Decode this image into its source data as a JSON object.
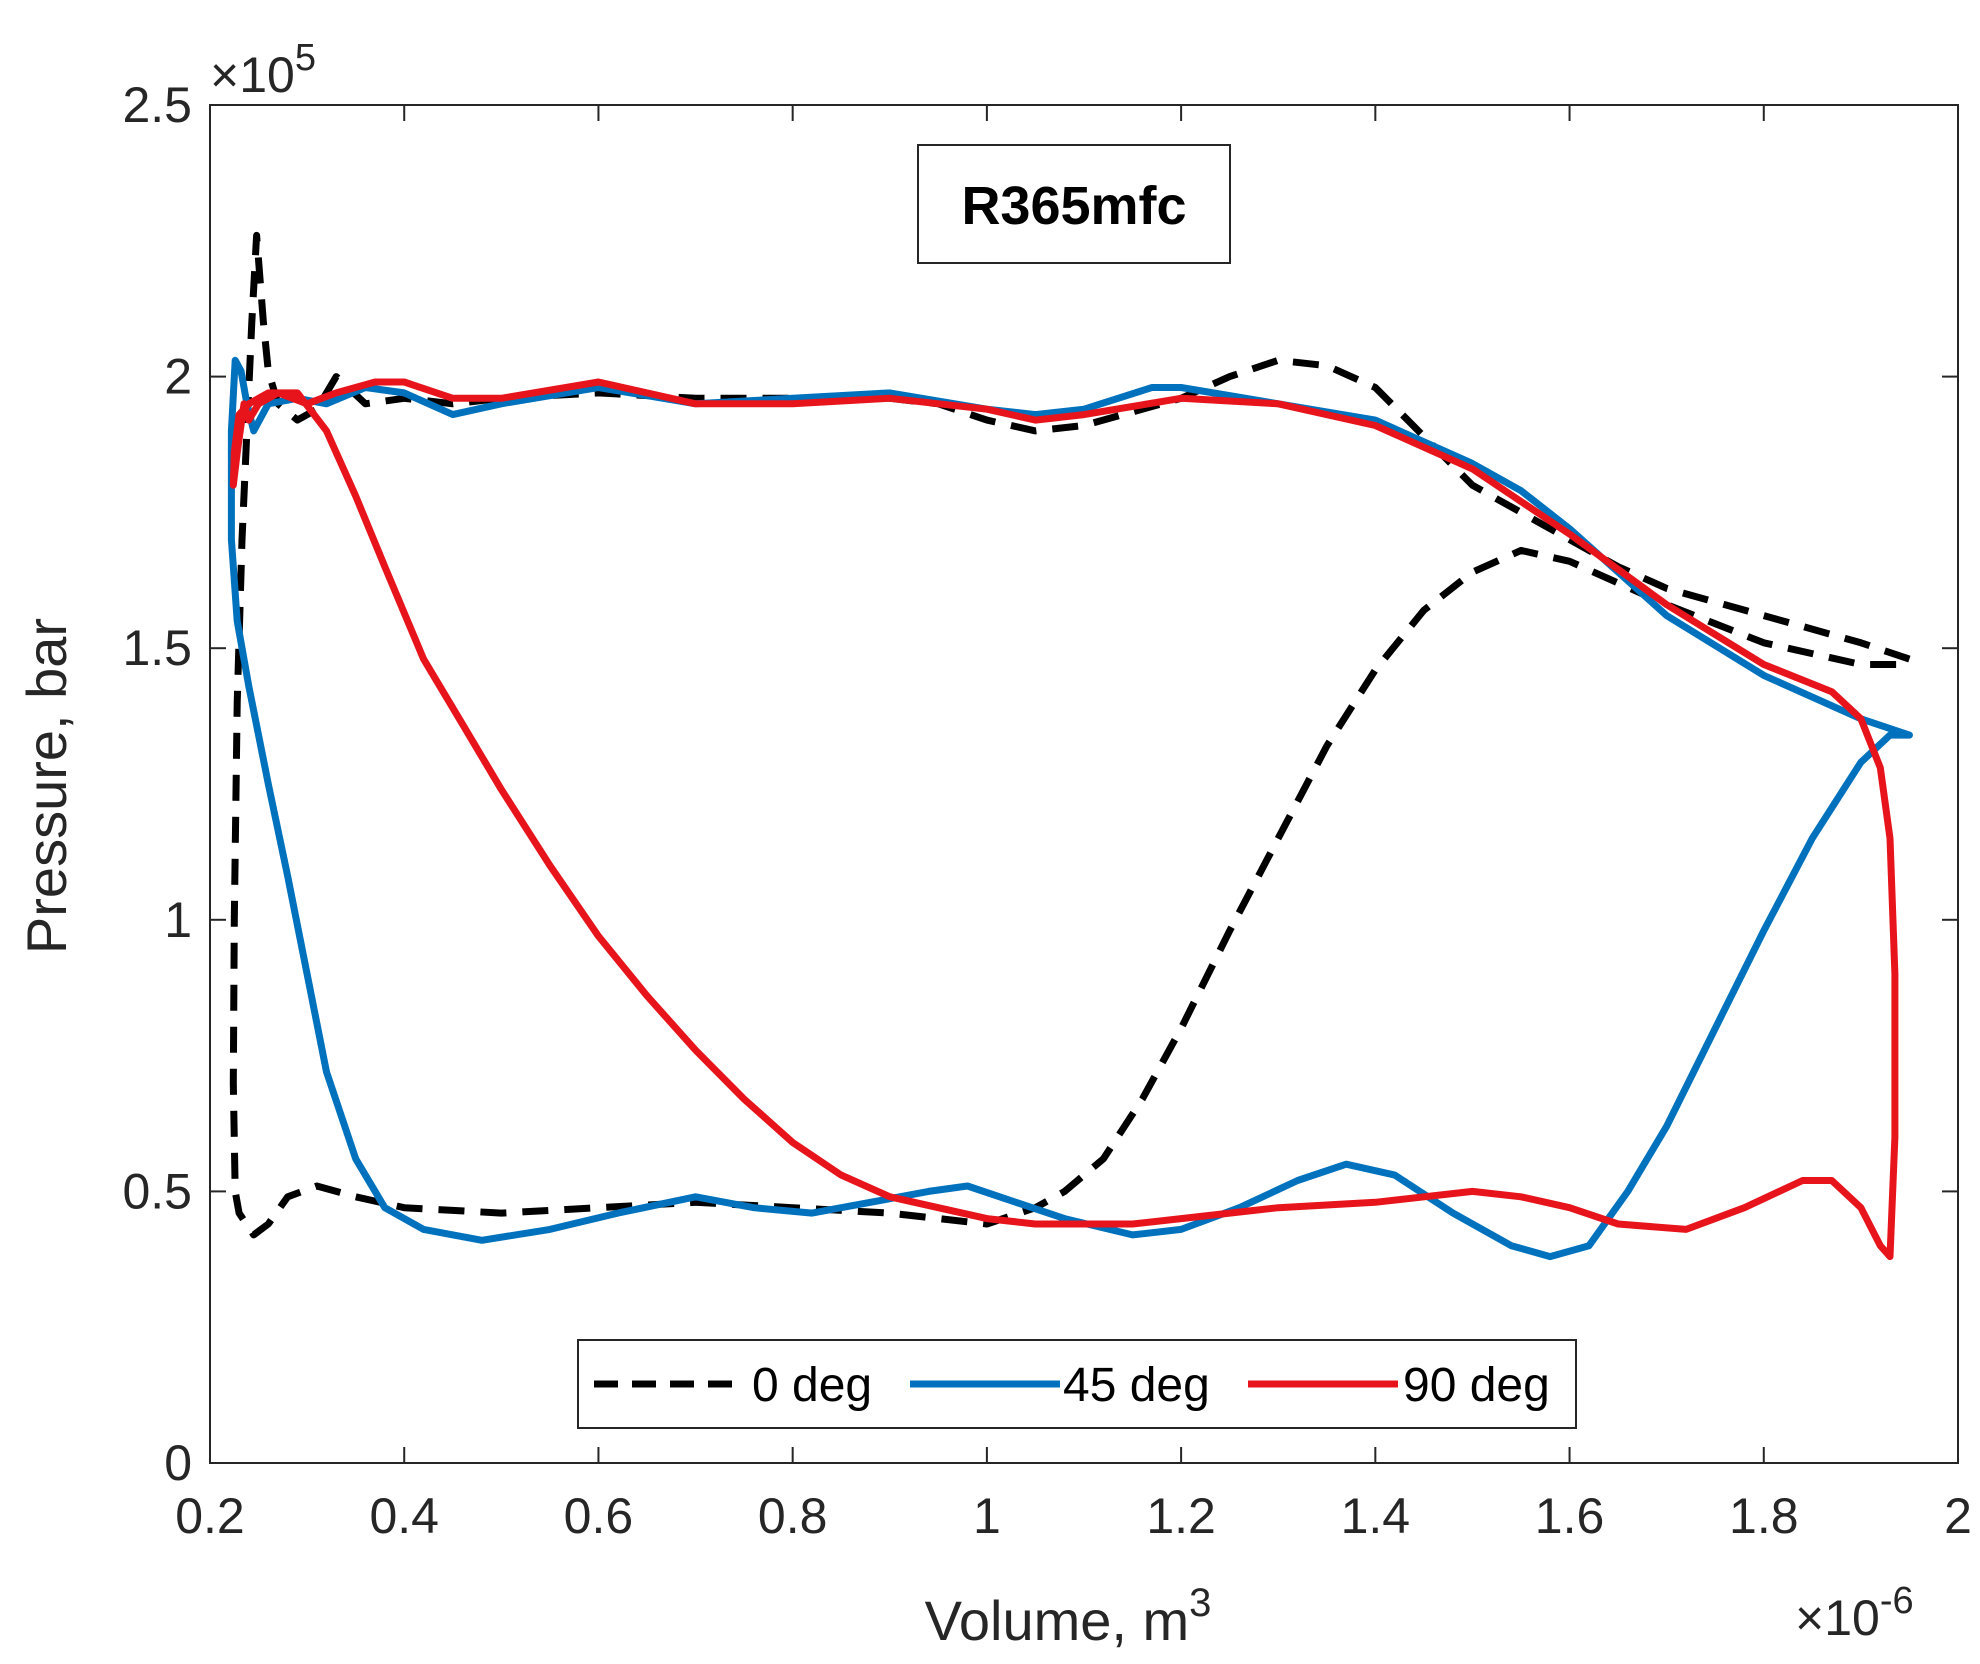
{
  "chart_data": {
    "type": "line",
    "title": "R365mfc",
    "xlabel": "Volume, m",
    "xlabel_superscript": "3",
    "ylabel": "Pressure, bar",
    "x_multiplier": "×10",
    "x_multiplier_exp": "-6",
    "y_multiplier": "×10",
    "y_multiplier_exp": "5",
    "xlim": [
      0.2,
      2.0
    ],
    "ylim": [
      0,
      2.5
    ],
    "xticks": [
      0.2,
      0.4,
      0.6,
      0.8,
      1.0,
      1.2,
      1.4,
      1.6,
      1.8,
      2.0
    ],
    "xtick_labels": [
      "0.2",
      "0.4",
      "0.6",
      "0.8",
      "1",
      "1.2",
      "1.4",
      "1.6",
      "1.8",
      "2"
    ],
    "yticks": [
      0,
      0.5,
      1.0,
      1.5,
      2.0,
      2.5
    ],
    "ytick_labels": [
      "0",
      "0.5",
      "1",
      "1.5",
      "2",
      "2.5"
    ],
    "legend_position": "bottom-center",
    "series": [
      {
        "name": "0 deg",
        "color": "#000000",
        "style": "dashed",
        "points": [
          [
            1.95,
            1.48
          ],
          [
            1.9,
            1.51
          ],
          [
            1.8,
            1.56
          ],
          [
            1.7,
            1.61
          ],
          [
            1.65,
            1.65
          ],
          [
            1.6,
            1.7
          ],
          [
            1.5,
            1.8
          ],
          [
            1.45,
            1.89
          ],
          [
            1.4,
            1.98
          ],
          [
            1.35,
            2.02
          ],
          [
            1.3,
            2.03
          ],
          [
            1.25,
            2.0
          ],
          [
            1.2,
            1.96
          ],
          [
            1.1,
            1.91
          ],
          [
            1.05,
            1.9
          ],
          [
            1.0,
            1.92
          ],
          [
            0.95,
            1.95
          ],
          [
            0.9,
            1.96
          ],
          [
            0.8,
            1.96
          ],
          [
            0.7,
            1.96
          ],
          [
            0.6,
            1.97
          ],
          [
            0.5,
            1.96
          ],
          [
            0.45,
            1.95
          ],
          [
            0.4,
            1.96
          ],
          [
            0.36,
            1.95
          ],
          [
            0.33,
            2.0
          ],
          [
            0.31,
            1.94
          ],
          [
            0.29,
            1.92
          ],
          [
            0.27,
            1.95
          ],
          [
            0.26,
            2.01
          ],
          [
            0.255,
            2.1
          ],
          [
            0.248,
            2.26
          ],
          [
            0.243,
            2.1
          ],
          [
            0.238,
            1.9
          ],
          [
            0.233,
            1.7
          ],
          [
            0.228,
            1.4
          ],
          [
            0.225,
            1.0
          ],
          [
            0.224,
            0.7
          ],
          [
            0.226,
            0.5
          ],
          [
            0.23,
            0.46
          ],
          [
            0.245,
            0.42
          ],
          [
            0.26,
            0.44
          ],
          [
            0.28,
            0.49
          ],
          [
            0.31,
            0.51
          ],
          [
            0.35,
            0.49
          ],
          [
            0.4,
            0.47
          ],
          [
            0.5,
            0.46
          ],
          [
            0.6,
            0.47
          ],
          [
            0.7,
            0.48
          ],
          [
            0.8,
            0.47
          ],
          [
            0.9,
            0.46
          ],
          [
            1.0,
            0.44
          ],
          [
            1.05,
            0.47
          ],
          [
            1.08,
            0.5
          ],
          [
            1.12,
            0.56
          ],
          [
            1.16,
            0.67
          ],
          [
            1.2,
            0.8
          ],
          [
            1.25,
            0.98
          ],
          [
            1.3,
            1.15
          ],
          [
            1.35,
            1.32
          ],
          [
            1.4,
            1.46
          ],
          [
            1.45,
            1.57
          ],
          [
            1.5,
            1.64
          ],
          [
            1.55,
            1.68
          ],
          [
            1.6,
            1.66
          ],
          [
            1.7,
            1.58
          ],
          [
            1.8,
            1.51
          ],
          [
            1.9,
            1.47
          ],
          [
            1.95,
            1.47
          ]
        ]
      },
      {
        "name": "45 deg",
        "color": "#0072BD",
        "style": "solid",
        "points": [
          [
            1.95,
            1.34
          ],
          [
            1.9,
            1.37
          ],
          [
            1.8,
            1.45
          ],
          [
            1.7,
            1.56
          ],
          [
            1.6,
            1.72
          ],
          [
            1.55,
            1.79
          ],
          [
            1.5,
            1.84
          ],
          [
            1.4,
            1.92
          ],
          [
            1.3,
            1.95
          ],
          [
            1.2,
            1.98
          ],
          [
            1.17,
            1.98
          ],
          [
            1.1,
            1.94
          ],
          [
            1.05,
            1.93
          ],
          [
            1.0,
            1.94
          ],
          [
            0.9,
            1.97
          ],
          [
            0.8,
            1.96
          ],
          [
            0.7,
            1.95
          ],
          [
            0.6,
            1.98
          ],
          [
            0.5,
            1.95
          ],
          [
            0.45,
            1.93
          ],
          [
            0.4,
            1.97
          ],
          [
            0.36,
            1.98
          ],
          [
            0.32,
            1.95
          ],
          [
            0.29,
            1.96
          ],
          [
            0.26,
            1.95
          ],
          [
            0.245,
            1.9
          ],
          [
            0.238,
            1.95
          ],
          [
            0.232,
            2.01
          ],
          [
            0.226,
            2.03
          ],
          [
            0.222,
            1.9
          ],
          [
            0.222,
            1.7
          ],
          [
            0.228,
            1.55
          ],
          [
            0.24,
            1.43
          ],
          [
            0.26,
            1.25
          ],
          [
            0.28,
            1.08
          ],
          [
            0.3,
            0.9
          ],
          [
            0.32,
            0.72
          ],
          [
            0.35,
            0.56
          ],
          [
            0.38,
            0.47
          ],
          [
            0.42,
            0.43
          ],
          [
            0.48,
            0.41
          ],
          [
            0.55,
            0.43
          ],
          [
            0.62,
            0.46
          ],
          [
            0.7,
            0.49
          ],
          [
            0.76,
            0.47
          ],
          [
            0.82,
            0.46
          ],
          [
            0.88,
            0.48
          ],
          [
            0.94,
            0.5
          ],
          [
            0.98,
            0.51
          ],
          [
            1.03,
            0.48
          ],
          [
            1.08,
            0.45
          ],
          [
            1.15,
            0.42
          ],
          [
            1.2,
            0.43
          ],
          [
            1.26,
            0.47
          ],
          [
            1.32,
            0.52
          ],
          [
            1.37,
            0.55
          ],
          [
            1.42,
            0.53
          ],
          [
            1.48,
            0.46
          ],
          [
            1.54,
            0.4
          ],
          [
            1.58,
            0.38
          ],
          [
            1.62,
            0.4
          ],
          [
            1.66,
            0.5
          ],
          [
            1.7,
            0.62
          ],
          [
            1.75,
            0.8
          ],
          [
            1.8,
            0.98
          ],
          [
            1.85,
            1.15
          ],
          [
            1.9,
            1.29
          ],
          [
            1.93,
            1.34
          ],
          [
            1.95,
            1.34
          ]
        ]
      },
      {
        "name": "90 deg",
        "color": "#E8141C",
        "style": "solid",
        "points": [
          [
            1.93,
            0.38
          ],
          [
            1.935,
            0.6
          ],
          [
            1.935,
            0.9
          ],
          [
            1.93,
            1.15
          ],
          [
            1.92,
            1.28
          ],
          [
            1.9,
            1.37
          ],
          [
            1.87,
            1.42
          ],
          [
            1.8,
            1.47
          ],
          [
            1.7,
            1.58
          ],
          [
            1.6,
            1.71
          ],
          [
            1.5,
            1.83
          ],
          [
            1.4,
            1.91
          ],
          [
            1.3,
            1.95
          ],
          [
            1.2,
            1.96
          ],
          [
            1.1,
            1.93
          ],
          [
            1.05,
            1.92
          ],
          [
            1.0,
            1.94
          ],
          [
            0.9,
            1.96
          ],
          [
            0.8,
            1.95
          ],
          [
            0.7,
            1.95
          ],
          [
            0.6,
            1.99
          ],
          [
            0.5,
            1.96
          ],
          [
            0.45,
            1.96
          ],
          [
            0.4,
            1.99
          ],
          [
            0.37,
            1.99
          ],
          [
            0.33,
            1.97
          ],
          [
            0.3,
            1.95
          ],
          [
            0.27,
            1.97
          ],
          [
            0.25,
            1.95
          ],
          [
            0.24,
            1.92
          ],
          [
            0.235,
            1.95
          ],
          [
            0.228,
            1.86
          ],
          [
            0.224,
            1.8
          ],
          [
            0.225,
            1.86
          ],
          [
            0.23,
            1.93
          ],
          [
            0.24,
            1.95
          ],
          [
            0.26,
            1.97
          ],
          [
            0.29,
            1.97
          ],
          [
            0.32,
            1.9
          ],
          [
            0.35,
            1.78
          ],
          [
            0.38,
            1.65
          ],
          [
            0.42,
            1.48
          ],
          [
            0.46,
            1.36
          ],
          [
            0.5,
            1.24
          ],
          [
            0.55,
            1.1
          ],
          [
            0.6,
            0.97
          ],
          [
            0.65,
            0.86
          ],
          [
            0.7,
            0.76
          ],
          [
            0.75,
            0.67
          ],
          [
            0.8,
            0.59
          ],
          [
            0.85,
            0.53
          ],
          [
            0.9,
            0.49
          ],
          [
            0.95,
            0.47
          ],
          [
            1.0,
            0.45
          ],
          [
            1.05,
            0.44
          ],
          [
            1.1,
            0.44
          ],
          [
            1.15,
            0.44
          ],
          [
            1.2,
            0.45
          ],
          [
            1.25,
            0.46
          ],
          [
            1.3,
            0.47
          ],
          [
            1.4,
            0.48
          ],
          [
            1.5,
            0.5
          ],
          [
            1.55,
            0.49
          ],
          [
            1.6,
            0.47
          ],
          [
            1.65,
            0.44
          ],
          [
            1.72,
            0.43
          ],
          [
            1.78,
            0.47
          ],
          [
            1.84,
            0.52
          ],
          [
            1.87,
            0.52
          ],
          [
            1.9,
            0.47
          ],
          [
            1.92,
            0.4
          ],
          [
            1.93,
            0.38
          ]
        ]
      }
    ]
  }
}
